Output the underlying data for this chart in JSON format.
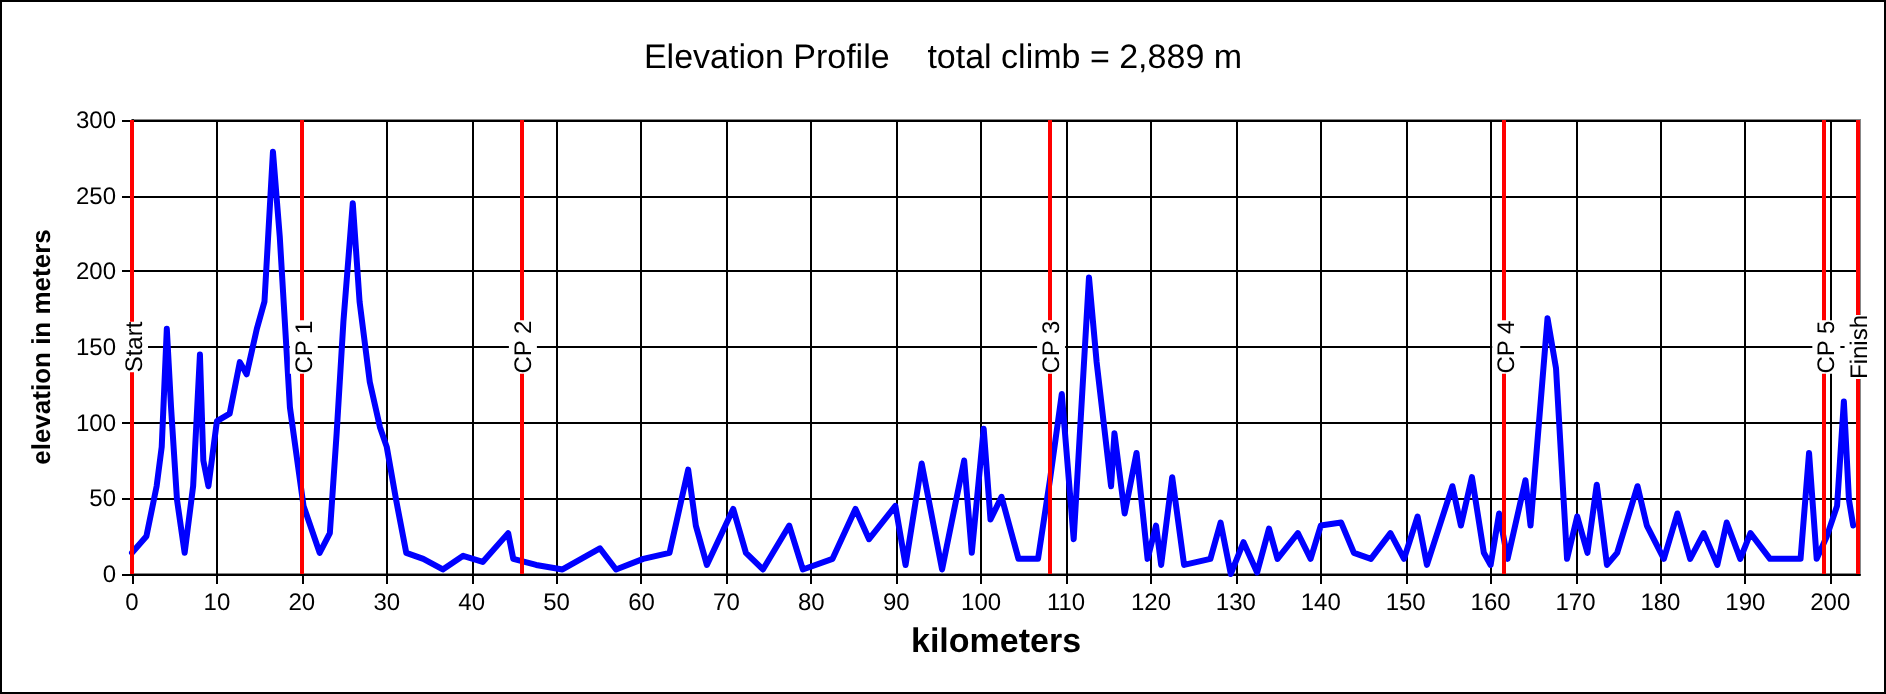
{
  "chart_data": {
    "type": "line",
    "title": "Elevation Profile    total climb = 2,889 m",
    "xlabel": "kilometers",
    "ylabel": "elevation in meters",
    "xlim": [
      0,
      203.5
    ],
    "xticks": [
      0,
      10,
      20,
      30,
      40,
      50,
      60,
      70,
      80,
      90,
      100,
      110,
      120,
      130,
      140,
      150,
      160,
      170,
      180,
      190,
      200
    ],
    "ylim": [
      0,
      300
    ],
    "yticks": [
      0,
      50,
      100,
      150,
      200,
      250,
      300
    ],
    "grid": true,
    "marker": "none",
    "line_style": "solid",
    "series": [
      {
        "color": "#0000ff",
        "x": [
          0,
          1.7,
          2.9,
          3.5,
          4.1,
          4.6,
          5.3,
          6.2,
          7.2,
          8.0,
          8.4,
          9.0,
          10,
          11.5,
          12.7,
          13.5,
          14.7,
          15.6,
          16.6,
          17.4,
          18.6,
          20.2,
          22.1,
          23.3,
          24.1,
          24.9,
          26.0,
          26.8,
          28,
          29.2,
          30,
          31.1,
          32.3,
          34.3,
          36.6,
          39,
          41.3,
          44.3,
          44.9,
          47.6,
          50.7,
          55.1,
          57,
          60.2,
          63.3,
          65.5,
          66.4,
          67.7,
          70.8,
          72.3,
          74.3,
          77.4,
          79,
          82.5,
          85.2,
          86.8,
          89.9,
          91.1,
          93,
          95.4,
          98,
          98.9,
          100.3,
          101.1,
          102.4,
          104.4,
          106.7,
          108.1,
          109.5,
          110.9,
          112.7,
          113.6,
          115.3,
          115.7,
          116.9,
          118.3,
          119.6,
          120.6,
          121.2,
          122.5,
          123.9,
          127,
          128.2,
          129.4,
          130.9,
          132.5,
          133.9,
          134.9,
          137.3,
          138.8,
          140,
          142.4,
          143.9,
          145.9,
          148.2,
          149.8,
          151.4,
          152.5,
          155.5,
          156.5,
          157.8,
          159.2,
          160,
          161,
          162,
          164.1,
          164.7,
          166.7,
          167.7,
          169,
          170.2,
          171.4,
          172.5,
          173.7,
          174.9,
          177.3,
          178.4,
          180.4,
          182,
          183.5,
          185.1,
          186.7,
          187.8,
          189.4,
          190.6,
          192.9,
          195.3,
          196.5,
          197.5,
          198.4,
          199.6,
          200.8,
          201.6,
          202.2,
          202.7
        ],
        "values": [
          14,
          25,
          58,
          84,
          162,
          110,
          49,
          14,
          58,
          145,
          75,
          58,
          101,
          106,
          140,
          132,
          162,
          180,
          279,
          223,
          110,
          45,
          14,
          27,
          93,
          167,
          245,
          180,
          127,
          97,
          84,
          49,
          14,
          10,
          3,
          12,
          8,
          27,
          10,
          6,
          3,
          17,
          3,
          10,
          14,
          69,
          32,
          6,
          43,
          14,
          3,
          32,
          3,
          10,
          43,
          23,
          45,
          6,
          73,
          3,
          75,
          14,
          96,
          36,
          51,
          10,
          10,
          62,
          119,
          23,
          196,
          140,
          58,
          93,
          40,
          80,
          10,
          32,
          6,
          64,
          6,
          10,
          34,
          0,
          21,
          1,
          30,
          10,
          27,
          10,
          32,
          34,
          14,
          10,
          27,
          10,
          38,
          6,
          58,
          32,
          64,
          14,
          6,
          40,
          10,
          62,
          32,
          169,
          136,
          10,
          38,
          14,
          59,
          6,
          14,
          58,
          32,
          10,
          40,
          10,
          27,
          6,
          34,
          10,
          27,
          10,
          10,
          10,
          80,
          10,
          25,
          45,
          114,
          49,
          32
        ]
      }
    ],
    "ref_lines": [
      {
        "axis": "x",
        "value": 0,
        "label": "Start",
        "color": "#ff0000"
      },
      {
        "axis": "x",
        "value": 20,
        "label": "CP 1",
        "color": "#ff0000"
      },
      {
        "axis": "x",
        "value": 45.8,
        "label": "CP 2",
        "color": "#ff0000"
      },
      {
        "axis": "x",
        "value": 108,
        "label": "CP 3",
        "color": "#ff0000"
      },
      {
        "axis": "x",
        "value": 161.6,
        "label": "CP 4",
        "color": "#ff0000"
      },
      {
        "axis": "x",
        "value": 199.3,
        "label": "CP 5",
        "color": "#ff0000"
      },
      {
        "axis": "x",
        "value": 203.1,
        "label": "Finish",
        "color": "#ff0000"
      }
    ]
  }
}
